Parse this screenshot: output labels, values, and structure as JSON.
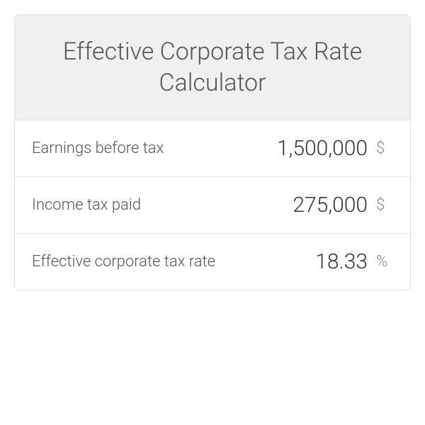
{
  "title": "Effective Corporate Tax Rate Calculator",
  "rows": [
    {
      "label": "Earnings before tax",
      "value": "1,500,000",
      "unit": "$"
    },
    {
      "label": "Income tax paid",
      "value": "275,000",
      "unit": "$"
    },
    {
      "label": "Effective corporate tax rate",
      "value": "18.33",
      "unit": "%"
    }
  ],
  "colors": {
    "headerBg": "#f0f0f0",
    "cardBorder": "#e0e0e0",
    "rowBorder": "#e8e8e8",
    "titleColor": "#555555",
    "labelColor": "#555555",
    "valueColor": "#333333",
    "unitColor": "#888888"
  }
}
